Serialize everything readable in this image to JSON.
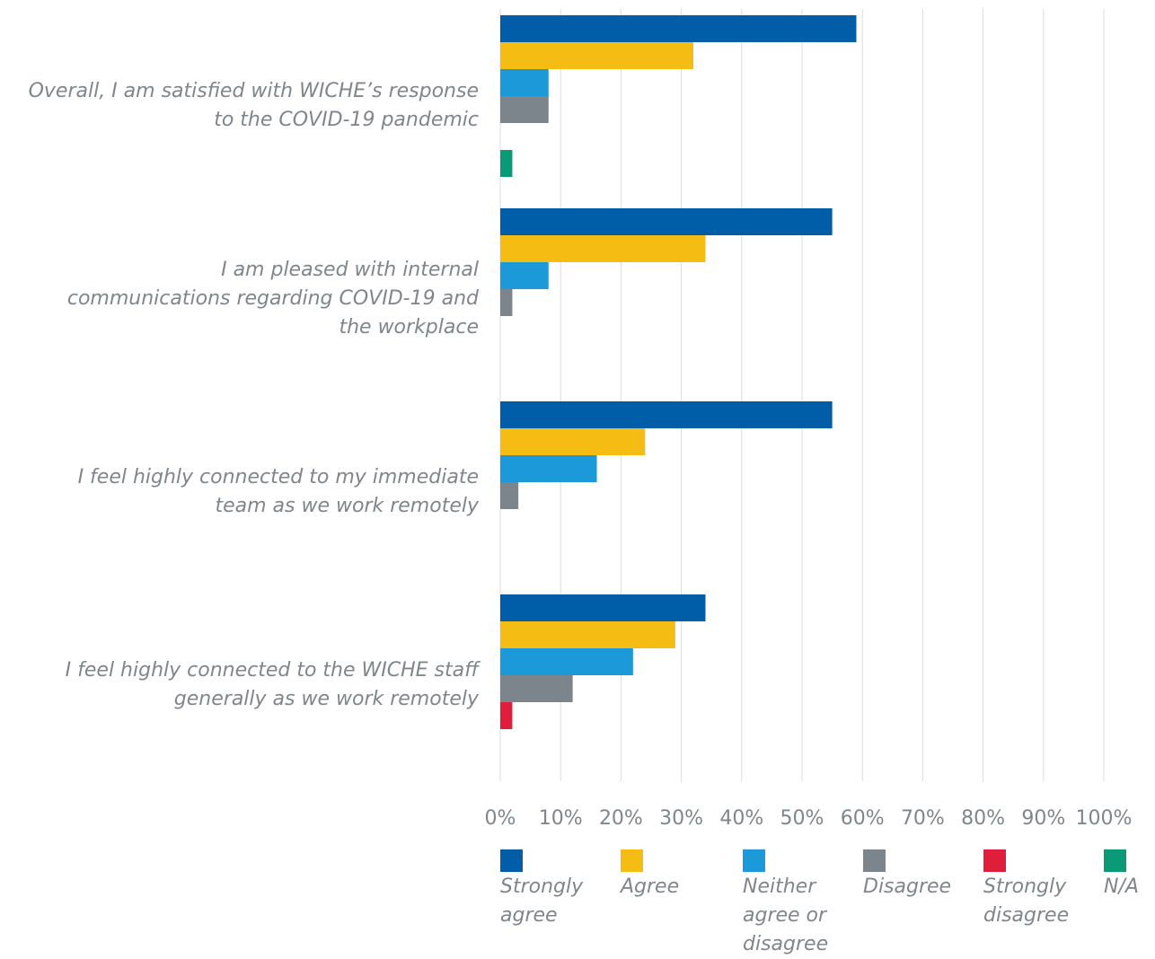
{
  "chart_data": {
    "type": "bar",
    "orientation": "horizontal",
    "categories": [
      "Overall, I am satisfied with WICHE’s response\nto the COVID-19 pandemic",
      "I am pleased with internal\ncommunications regarding COVID-19 and\nthe workplace",
      "I feel highly connected to my immediate\nteam as we work remotely",
      "I feel highly connected to the WICHE staff\ngenerally as we work remotely"
    ],
    "series": [
      {
        "name": "Strongly agree",
        "color": "#005ea8",
        "values": [
          59,
          55,
          55,
          34
        ]
      },
      {
        "name": "Agree",
        "color": "#f5bc14",
        "values": [
          32,
          34,
          24,
          29
        ]
      },
      {
        "name": "Neither agree or disagree",
        "color": "#1b99d9",
        "values": [
          8,
          8,
          16,
          22
        ]
      },
      {
        "name": "Disagree",
        "color": "#7d858c",
        "values": [
          8,
          2,
          3,
          12
        ]
      },
      {
        "name": "Strongly disagree",
        "color": "#e01e3c",
        "values": [
          0,
          0,
          0,
          2
        ]
      },
      {
        "name": "N/A",
        "color": "#0a9a78",
        "values": [
          2,
          0,
          0,
          0
        ]
      }
    ],
    "xlim": [
      0,
      100
    ],
    "xticks": [
      {
        "value": 0,
        "label": "0%"
      },
      {
        "value": 10,
        "label": "10%"
      },
      {
        "value": 20,
        "label": "20%"
      },
      {
        "value": 30,
        "label": "30%"
      },
      {
        "value": 40,
        "label": "40%"
      },
      {
        "value": 50,
        "label": "50%"
      },
      {
        "value": 60,
        "label": "60%"
      },
      {
        "value": 70,
        "label": "70%"
      },
      {
        "value": 80,
        "label": "80%"
      },
      {
        "value": 90,
        "label": "90%"
      },
      {
        "value": 100,
        "label": "100%"
      }
    ],
    "grid": true,
    "legend": "bottom"
  }
}
